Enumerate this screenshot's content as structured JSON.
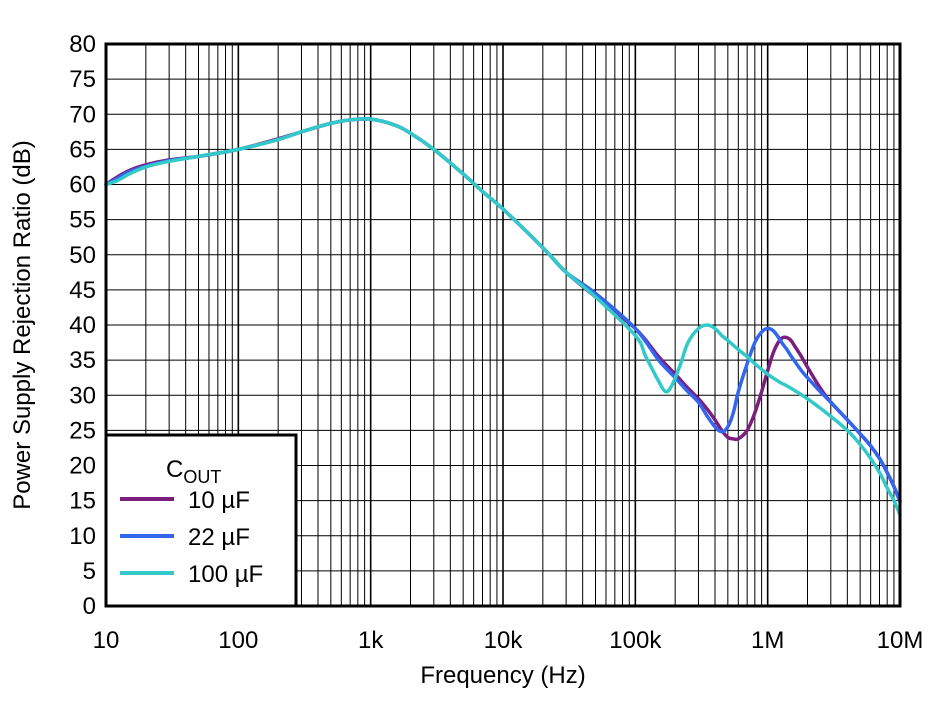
{
  "chart_data": {
    "type": "line",
    "title": "",
    "xlabel": "Frequency (Hz)",
    "ylabel": "Power Supply Rejection Ratio (dB)",
    "xscale": "log",
    "xlim": [
      10,
      10000000
    ],
    "ylim": [
      0,
      80
    ],
    "grid": true,
    "x_ticks": [
      10,
      100,
      1000,
      10000,
      100000,
      1000000,
      10000000
    ],
    "x_tick_labels": [
      "10",
      "100",
      "1k",
      "10k",
      "100k",
      "1M",
      "10M"
    ],
    "y_ticks": [
      0,
      5,
      10,
      15,
      20,
      25,
      30,
      35,
      40,
      45,
      50,
      55,
      60,
      65,
      70,
      75,
      80
    ],
    "y_tick_labels": [
      "0",
      "5",
      "10",
      "15",
      "20",
      "25",
      "30",
      "35",
      "40",
      "45",
      "50",
      "55",
      "60",
      "65",
      "70",
      "75",
      "80"
    ],
    "legend": {
      "title_main": "C",
      "title_sub": "OUT",
      "placement": "bottom-left"
    },
    "series": [
      {
        "name": "10 µF",
        "color": "#7b1f7f",
        "x": [
          10,
          12,
          15,
          20,
          30,
          50,
          100,
          200,
          300,
          500,
          700,
          1000,
          1500,
          2000,
          3000,
          5000,
          7000,
          10000,
          20000,
          30000,
          50000,
          100000,
          150000,
          200000,
          250000,
          300000,
          350000,
          400000,
          450000,
          500000,
          550000,
          600000,
          700000,
          800000,
          900000,
          1000000,
          1100000,
          1200000,
          1300000,
          1400000,
          1500000,
          1600000,
          1800000,
          2000000,
          2500000,
          3000000,
          4000000,
          5000000,
          6000000,
          7000000,
          8000000,
          9000000,
          10000000
        ],
        "y": [
          60,
          61,
          62,
          62.8,
          63.5,
          64,
          65,
          66.5,
          67.5,
          68.7,
          69.2,
          69.3,
          68.5,
          67.3,
          65,
          61.5,
          59,
          56.5,
          51,
          47.5,
          44,
          39.5,
          35.5,
          33,
          31,
          29.5,
          28,
          26.5,
          25,
          24,
          23.8,
          23.8,
          25,
          27.5,
          30.5,
          33.5,
          36,
          37.5,
          38.2,
          38.2,
          37.8,
          37,
          35.5,
          34,
          31,
          29,
          26.5,
          24.5,
          22.8,
          21,
          19,
          17,
          15
        ]
      },
      {
        "name": "22 µF",
        "color": "#3366ee",
        "x": [
          10,
          12,
          15,
          20,
          30,
          50,
          100,
          200,
          300,
          500,
          700,
          1000,
          1500,
          2000,
          3000,
          5000,
          7000,
          10000,
          20000,
          30000,
          50000,
          100000,
          150000,
          200000,
          250000,
          300000,
          350000,
          400000,
          450000,
          500000,
          550000,
          600000,
          700000,
          800000,
          900000,
          1000000,
          1100000,
          1200000,
          1300000,
          1400000,
          1500000,
          1800000,
          2000000,
          2500000,
          3000000,
          4000000,
          5000000,
          6000000,
          7000000,
          8000000,
          9000000,
          10000000
        ],
        "y": [
          60,
          60.8,
          61.8,
          62.6,
          63.4,
          64,
          65,
          66.4,
          67.5,
          68.7,
          69.2,
          69.3,
          68.5,
          67.3,
          65,
          61.5,
          59,
          56.5,
          51,
          47.5,
          44.5,
          39.5,
          35,
          32.5,
          30.5,
          29,
          27,
          25.5,
          24.8,
          25.5,
          27.5,
          30.5,
          34.5,
          37.5,
          39,
          39.5,
          39.2,
          38.3,
          37.3,
          36.5,
          35.6,
          33.5,
          32.5,
          30.5,
          29,
          26.5,
          24.5,
          22.8,
          21,
          19,
          17,
          14.8
        ]
      },
      {
        "name": "100 µF",
        "color": "#33c9c9",
        "x": [
          10,
          12,
          15,
          20,
          30,
          50,
          100,
          200,
          300,
          500,
          700,
          1000,
          1500,
          2000,
          3000,
          5000,
          7000,
          10000,
          20000,
          30000,
          50000,
          100000,
          120000,
          150000,
          170000,
          190000,
          220000,
          250000,
          300000,
          350000,
          400000,
          450000,
          500000,
          600000,
          700000,
          800000,
          1000000,
          1200000,
          1500000,
          2000000,
          3000000,
          4000000,
          5000000,
          6000000,
          7000000,
          8000000,
          9000000,
          10000000
        ],
        "y": [
          60,
          60.5,
          61.5,
          62.5,
          63.3,
          64,
          65,
          66.4,
          67.5,
          68.7,
          69.2,
          69.3,
          68.5,
          67.3,
          65,
          61.5,
          59,
          56.5,
          51,
          47.5,
          44,
          38.5,
          35.5,
          32,
          30.5,
          31.5,
          34.5,
          37.5,
          39.5,
          40,
          39.5,
          38.5,
          37.8,
          36.5,
          35.5,
          34.5,
          33,
          32,
          31,
          29.5,
          27,
          25,
          23,
          21,
          19,
          16.8,
          15,
          13
        ]
      }
    ]
  }
}
